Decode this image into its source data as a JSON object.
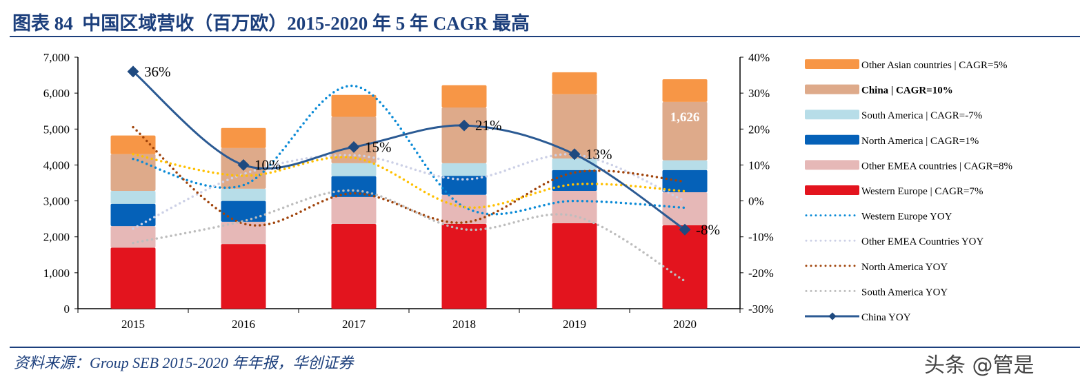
{
  "title": "图表 84  中国区域营收（百万欧）2015-2020 年 5 年 CAGR 最高",
  "source": "资料来源：Group SEB 2015-2020 年年报，华创证券",
  "watermark": "头条 @管是",
  "colors": {
    "title": "#1c3f7c"
  },
  "chart_data": {
    "type": "bar",
    "stacked": true,
    "categories": [
      "2015",
      "2016",
      "2017",
      "2018",
      "2019",
      "2020"
    ],
    "y_left": {
      "ylim": [
        0,
        7000
      ],
      "ticks": [
        "0",
        "1,000",
        "2,000",
        "3,000",
        "4,000",
        "5,000",
        "6,000",
        "7,000"
      ]
    },
    "y_right": {
      "ylim": [
        -30,
        40
      ],
      "ticks": [
        "-30%",
        "-20%",
        "-10%",
        "0%",
        "10%",
        "20%",
        "30%",
        "40%"
      ]
    },
    "legend_position": "right",
    "bar_series": [
      {
        "name": "Western Europe | CAGR=7%",
        "color": "#e3141e",
        "values": [
          1700,
          1800,
          2360,
          2360,
          2380,
          2320
        ]
      },
      {
        "name": "Other EMEA countries | CAGR=8%",
        "color": "#e6b8b7",
        "values": [
          600,
          620,
          750,
          810,
          900,
          920
        ]
      },
      {
        "name": "North America | CAGR=1%",
        "color": "#0561b8",
        "values": [
          620,
          580,
          580,
          530,
          580,
          620
        ]
      },
      {
        "name": "South America | CAGR=-7%",
        "color": "#b7dde8",
        "values": [
          360,
          340,
          360,
          350,
          320,
          270
        ]
      },
      {
        "name": "China | CAGR=10%",
        "color": "#deaa8a",
        "values": [
          1020,
          1130,
          1290,
          1550,
          1790,
          1626
        ],
        "highlight": true,
        "highlight_color": "#c00000"
      },
      {
        "name": "Other Asian countries | CAGR=5%",
        "color": "#f79646",
        "values": [
          520,
          560,
          610,
          620,
          610,
          630
        ]
      }
    ],
    "data_labels": [
      {
        "series": "China | CAGR=10%",
        "category": "2020",
        "text": "1,626"
      }
    ],
    "line_series": [
      {
        "name": "Western Europe YOY",
        "color": "#0a8ad6",
        "style": "dotted",
        "values": [
          11.7,
          4.4,
          32,
          -1.7,
          0,
          -1.9
        ]
      },
      {
        "name": "Other EMEA Countries YOY",
        "color": "#ccd0e6",
        "style": "dotted",
        "values": [
          -7.7,
          7.5,
          12.7,
          6,
          12.9,
          0
        ]
      },
      {
        "name": "North America YOY",
        "color": "#a0430a",
        "style": "dotted",
        "values": [
          20.5,
          -6.3,
          2.1,
          -6,
          7.9,
          5.4
        ]
      },
      {
        "name": "South America YOY",
        "color": "#bdbdbd",
        "style": "dotted",
        "values": [
          -11.7,
          -5.6,
          2.9,
          -7.9,
          -4.2,
          -22.3
        ]
      },
      {
        "name": "",
        "color": "#ffc000",
        "style": "dotted",
        "values": [
          13,
          7,
          12,
          -1.7,
          4.6,
          2.7
        ]
      },
      {
        "name": "China YOY",
        "color": "#2b5a93",
        "style": "solid-diamond",
        "values": [
          36,
          10,
          15,
          21,
          13,
          -8
        ],
        "labels": [
          "36%",
          "10%",
          "15%",
          "21%",
          "13%",
          "-8%"
        ]
      }
    ]
  }
}
